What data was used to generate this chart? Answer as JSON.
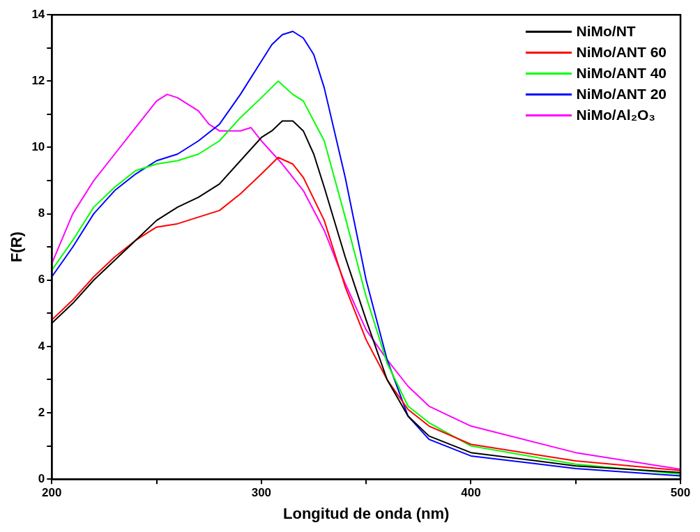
{
  "chart_data": {
    "type": "line",
    "xlabel": "Longitud de onda (nm)",
    "ylabel": "F(R)",
    "xlim": [
      200,
      500
    ],
    "xticks": [
      200,
      {
        "value": 250,
        "label": null
      },
      300,
      {
        "value": 350,
        "label": null
      },
      400,
      {
        "value": 450,
        "label": null
      },
      500
    ],
    "ylim": [
      0,
      14
    ],
    "yticks": [
      0,
      {
        "value": 1,
        "label": null
      },
      2,
      {
        "value": 3,
        "label": null
      },
      4,
      {
        "value": 5,
        "label": null
      },
      6,
      {
        "value": 7,
        "label": null
      },
      8,
      {
        "value": 9,
        "label": null
      },
      10,
      {
        "value": 11,
        "label": null
      },
      12,
      {
        "value": 13,
        "label": null
      },
      14
    ],
    "grid": false,
    "legend": "top right",
    "marker": "none",
    "line_style": "solid",
    "series": [
      {
        "name": "NiMo/NT",
        "color": "#000000",
        "x": [
          200,
          210,
          220,
          230,
          240,
          250,
          260,
          270,
          280,
          290,
          300,
          305,
          310,
          315,
          320,
          325,
          330,
          340,
          350,
          360,
          370,
          380,
          400,
          450,
          500
        ],
        "values": [
          4.7,
          5.3,
          6.0,
          6.6,
          7.2,
          7.8,
          8.2,
          8.5,
          8.9,
          9.6,
          10.3,
          10.5,
          10.8,
          10.8,
          10.5,
          9.8,
          8.8,
          6.7,
          4.8,
          3.0,
          1.9,
          1.3,
          0.8,
          0.4,
          0.2
        ]
      },
      {
        "name": "NiMo/ANT 60",
        "color": "#ff0000",
        "x": [
          200,
          210,
          220,
          230,
          240,
          250,
          260,
          270,
          280,
          290,
          300,
          308,
          315,
          320,
          330,
          340,
          350,
          360,
          370,
          380,
          400,
          450,
          500
        ],
        "values": [
          4.8,
          5.4,
          6.1,
          6.7,
          7.2,
          7.6,
          7.7,
          7.9,
          8.1,
          8.6,
          9.2,
          9.7,
          9.5,
          9.1,
          7.8,
          5.8,
          4.2,
          3.0,
          2.1,
          1.6,
          1.05,
          0.55,
          0.26
        ]
      },
      {
        "name": "NiMo/ANT 40",
        "color": "#00ff00",
        "x": [
          200,
          210,
          220,
          230,
          240,
          250,
          260,
          270,
          280,
          290,
          300,
          308,
          315,
          320,
          330,
          340,
          350,
          360,
          370,
          380,
          400,
          450,
          500
        ],
        "values": [
          6.3,
          7.2,
          8.2,
          8.8,
          9.3,
          9.5,
          9.6,
          9.8,
          10.2,
          10.9,
          11.5,
          12.0,
          11.6,
          11.4,
          10.2,
          7.9,
          5.5,
          3.5,
          2.2,
          1.7,
          1.0,
          0.45,
          0.15
        ]
      },
      {
        "name": "NiMo/ANT 20",
        "color": "#0000ff",
        "x": [
          200,
          210,
          220,
          230,
          240,
          250,
          260,
          270,
          280,
          290,
          300,
          305,
          310,
          315,
          320,
          325,
          330,
          340,
          350,
          360,
          370,
          380,
          400,
          450,
          500
        ],
        "values": [
          6.1,
          7.0,
          8.0,
          8.7,
          9.2,
          9.6,
          9.8,
          10.2,
          10.7,
          11.6,
          12.6,
          13.1,
          13.4,
          13.5,
          13.3,
          12.8,
          11.8,
          9.1,
          6.0,
          3.6,
          1.9,
          1.2,
          0.7,
          0.32,
          0.1
        ]
      },
      {
        "name": "NiMo/Al₂O₃",
        "color": "#ff00ff",
        "x": [
          200,
          210,
          220,
          230,
          240,
          250,
          255,
          260,
          270,
          275,
          280,
          290,
          295,
          300,
          310,
          320,
          330,
          340,
          350,
          360,
          370,
          380,
          400,
          450,
          500
        ],
        "values": [
          6.5,
          8.0,
          9.0,
          9.8,
          10.6,
          11.4,
          11.6,
          11.5,
          11.1,
          10.7,
          10.5,
          10.5,
          10.6,
          10.2,
          9.5,
          8.7,
          7.5,
          5.9,
          4.5,
          3.6,
          2.8,
          2.2,
          1.6,
          0.8,
          0.3
        ]
      }
    ]
  }
}
